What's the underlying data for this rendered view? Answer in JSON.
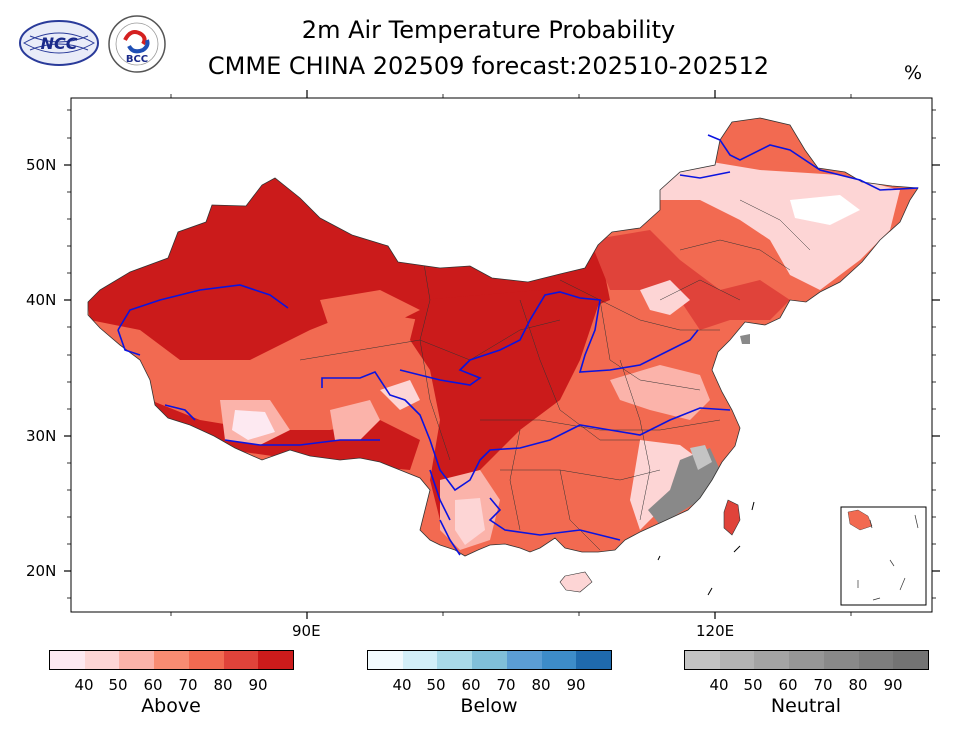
{
  "header": {
    "title_line1": "2m Air Temperature Probability",
    "title_line2": "CMME CHINA 202509 forecast:202510-202512",
    "unit": "%"
  },
  "logos": {
    "ncc_text": "NCC",
    "bcc_text": "BCC"
  },
  "map": {
    "lat_labels": [
      "50N",
      "40N",
      "30N",
      "20N"
    ],
    "lon_labels": [
      "90E",
      "120E"
    ]
  },
  "legend": {
    "above": {
      "title": "Above",
      "ticks": [
        "40",
        "50",
        "60",
        "70",
        "80",
        "90"
      ],
      "colors": [
        "#fde9f1",
        "#fdd5d5",
        "#fbb3aa",
        "#f88c72",
        "#f26a51",
        "#e0433a",
        "#cb1b1b"
      ]
    },
    "below": {
      "title": "Below",
      "ticks": [
        "40",
        "50",
        "60",
        "70",
        "80",
        "90"
      ],
      "colors": [
        "#f2fbfe",
        "#d2eff8",
        "#a8dae9",
        "#80bfd9",
        "#5b9ed4",
        "#3d8cc8",
        "#1f6aad"
      ]
    },
    "neutral": {
      "title": "Neutral",
      "ticks": [
        "40",
        "50",
        "60",
        "70",
        "80",
        "90"
      ],
      "colors": [
        "#c4c4c4",
        "#b3b3b3",
        "#a4a4a4",
        "#969696",
        "#898989",
        "#7d7d7d",
        "#737373"
      ]
    }
  }
}
